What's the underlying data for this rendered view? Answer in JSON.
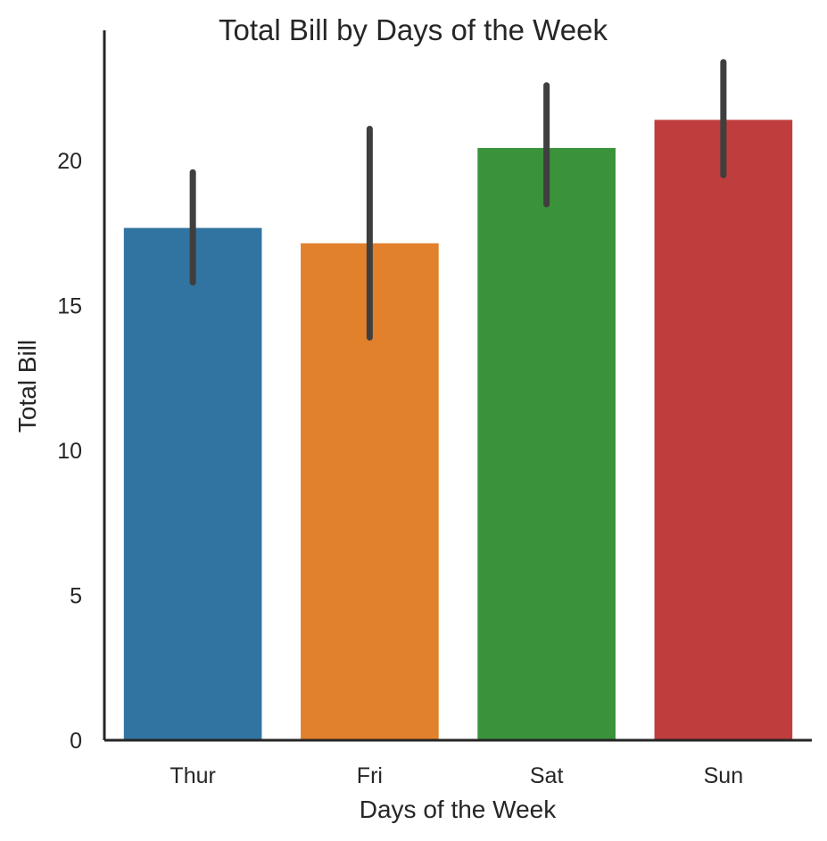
{
  "chart_data": {
    "type": "bar",
    "title": "Total Bill by Days of the Week",
    "xlabel": "Days of the Week",
    "ylabel": "Total Bill",
    "categories": [
      "Thur",
      "Fri",
      "Sat",
      "Sun"
    ],
    "values": [
      17.68,
      17.15,
      20.44,
      21.41
    ],
    "ci_low": [
      15.8,
      13.9,
      18.5,
      19.5
    ],
    "ci_high": [
      19.6,
      21.1,
      22.6,
      23.4
    ],
    "colors": [
      "#3274a1",
      "#e1812c",
      "#3a923a",
      "#c03d3e"
    ],
    "error_bar_color": "#3f3f3f",
    "ylim": [
      0,
      24.5
    ],
    "yticks": [
      "0",
      "5",
      "10",
      "15",
      "20"
    ],
    "ytick_values": [
      0,
      5,
      10,
      15,
      20
    ],
    "grid": false,
    "spines": "left-bottom"
  }
}
